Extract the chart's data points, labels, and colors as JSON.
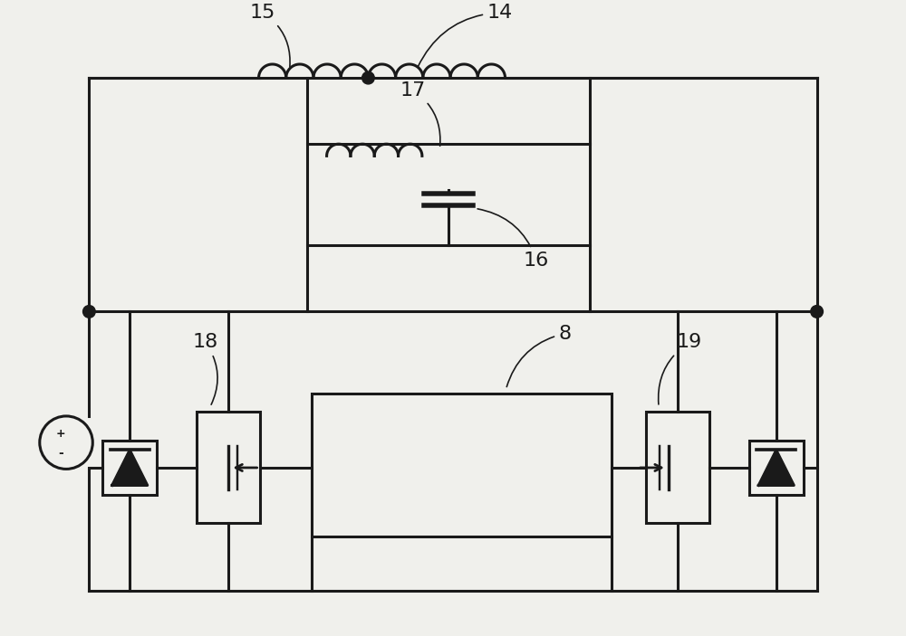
{
  "bg_color": "#f0f0ec",
  "line_color": "#1a1a1a",
  "line_width": 2.2,
  "fill_color": "#1a1a1a",
  "label_14": "14",
  "label_15": "15",
  "label_16": "16",
  "label_17": "17",
  "label_18": "18",
  "label_19": "19",
  "label_8": "8"
}
